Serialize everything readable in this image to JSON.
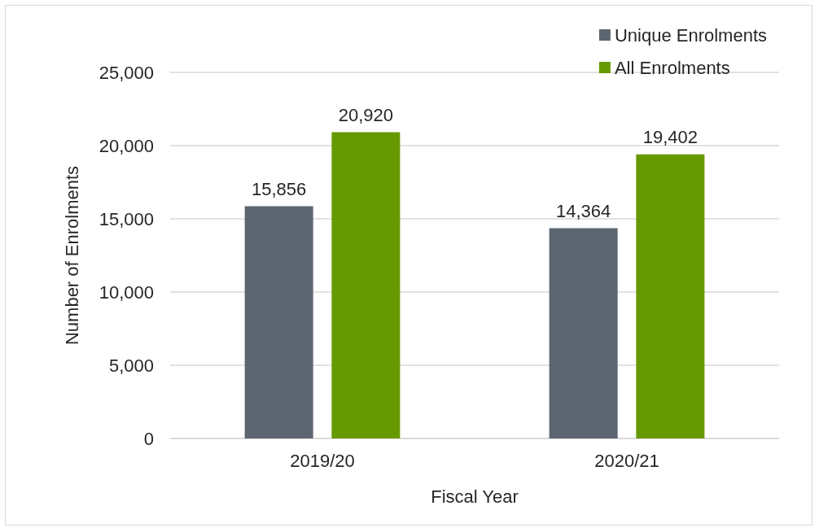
{
  "chart_data": {
    "type": "bar",
    "xlabel": "Fiscal Year",
    "ylabel": "Number of Enrolments",
    "categories": [
      "2019/20",
      "2020/21"
    ],
    "series": [
      {
        "name": "Unique Enrolments",
        "color": "#5c6670",
        "values": [
          15856,
          14364
        ],
        "value_labels": [
          "15,856",
          "14,364"
        ]
      },
      {
        "name": "All Enrolments",
        "color": "#669900",
        "values": [
          20920,
          19402
        ],
        "value_labels": [
          "20,920",
          "19,402"
        ]
      }
    ],
    "ylim": [
      0,
      25000
    ],
    "yticks": [
      0,
      {
        "value": 5000,
        "label": "5,000"
      },
      {
        "value": 10000,
        "label": "10,000"
      },
      {
        "value": 15000,
        "label": "15,000"
      },
      {
        "value": 20000,
        "label": "20,000"
      },
      {
        "value": 25000,
        "label": "25,000"
      }
    ],
    "grid": "y",
    "legend": "top right"
  }
}
